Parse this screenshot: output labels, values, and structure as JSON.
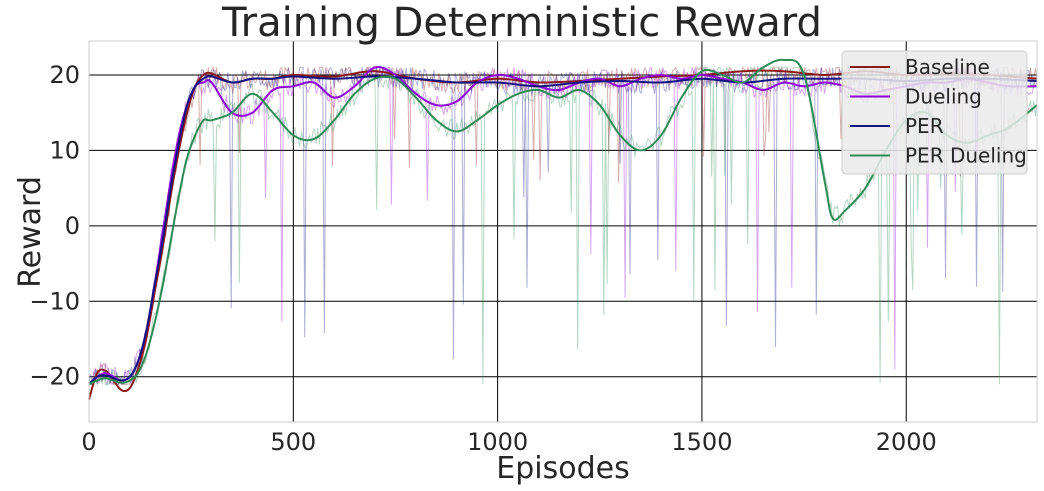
{
  "chart_data": {
    "type": "line",
    "title": "Training Deterministic Reward",
    "xlabel": "Episodes",
    "ylabel": "Reward",
    "xlim": [
      0,
      2320
    ],
    "ylim": [
      -26,
      24.5
    ],
    "xticks": [
      0,
      500,
      1000,
      1500,
      2000
    ],
    "yticks": [
      -20,
      -10,
      0,
      10,
      20
    ],
    "xtick_labels": [
      "0",
      "500",
      "1000",
      "1500",
      "2000"
    ],
    "ytick_labels": [
      "−20",
      "−10",
      "0",
      "10",
      "20"
    ],
    "grid": true,
    "legend_position": "top-right",
    "series": [
      {
        "name": "Baseline",
        "color": "#8b1a1a",
        "x": [
          0,
          20,
          40,
          60,
          80,
          100,
          120,
          140,
          160,
          180,
          200,
          220,
          240,
          260,
          280,
          300,
          350,
          400,
          450,
          500,
          600,
          700,
          800,
          900,
          1000,
          1100,
          1200,
          1300,
          1400,
          1500,
          1600,
          1700,
          1800,
          1900,
          2000,
          2100,
          2200,
          2320
        ],
        "y": [
          -23,
          -19.5,
          -19.2,
          -20.5,
          -21.8,
          -21.5,
          -19,
          -15,
          -9,
          -3,
          4,
          10,
          15,
          18.5,
          20,
          20.2,
          19,
          19.5,
          19.5,
          20,
          19.8,
          20.5,
          19.5,
          19,
          19.5,
          19,
          19.2,
          19.5,
          19.8,
          20,
          20.5,
          20.5,
          20,
          20.5,
          20,
          20.2,
          20,
          19.5
        ]
      },
      {
        "name": "Dueling",
        "color": "#8b00d9",
        "x": [
          0,
          20,
          40,
          60,
          80,
          100,
          120,
          140,
          160,
          180,
          200,
          220,
          240,
          260,
          280,
          300,
          350,
          400,
          450,
          500,
          550,
          600,
          650,
          700,
          750,
          800,
          850,
          900,
          950,
          1000,
          1050,
          1100,
          1150,
          1200,
          1250,
          1300,
          1350,
          1400,
          1450,
          1500,
          1550,
          1600,
          1650,
          1700,
          1750,
          1800,
          1850,
          1900,
          1950,
          2000,
          2050,
          2100,
          2150,
          2200,
          2250,
          2320
        ],
        "y": [
          -21,
          -20,
          -19.5,
          -20,
          -20.5,
          -20,
          -18,
          -14,
          -8,
          -1,
          6,
          12,
          16,
          18.5,
          19,
          19,
          15,
          15,
          18,
          18.5,
          19,
          17,
          18.5,
          21,
          20,
          17.5,
          16,
          16.5,
          19,
          20,
          19.5,
          18.5,
          18,
          19,
          19.5,
          18.5,
          19.5,
          20,
          19.5,
          20,
          19.5,
          19,
          18,
          19,
          18.5,
          19,
          18.5,
          17.5,
          18,
          18.5,
          19,
          19,
          19.5,
          19,
          18.5,
          18.5
        ]
      },
      {
        "name": "PER",
        "color": "#141480",
        "x": [
          0,
          20,
          40,
          60,
          80,
          100,
          120,
          140,
          160,
          180,
          200,
          220,
          240,
          260,
          280,
          300,
          350,
          400,
          450,
          500,
          600,
          700,
          800,
          900,
          1000,
          1100,
          1200,
          1300,
          1400,
          1500,
          1600,
          1700,
          1800,
          1900,
          2000,
          2100,
          2200,
          2320
        ],
        "y": [
          -21,
          -20,
          -19.8,
          -20.2,
          -20.5,
          -20,
          -18,
          -14,
          -8,
          -2,
          5,
          11,
          16,
          18.5,
          19.5,
          19.8,
          19,
          19.5,
          19.5,
          19.8,
          19.5,
          19.8,
          19.5,
          19,
          19,
          18.5,
          19,
          19.2,
          19,
          19.5,
          19,
          19.5,
          19.5,
          19.5,
          19.2,
          19.5,
          19.5,
          19.2
        ]
      },
      {
        "name": "PER Dueling",
        "color": "#2e8b57",
        "x": [
          0,
          20,
          40,
          60,
          80,
          100,
          120,
          140,
          160,
          180,
          200,
          220,
          240,
          260,
          280,
          300,
          350,
          400,
          450,
          500,
          550,
          600,
          650,
          700,
          750,
          800,
          850,
          900,
          950,
          1000,
          1050,
          1100,
          1150,
          1200,
          1250,
          1300,
          1350,
          1400,
          1450,
          1500,
          1550,
          1600,
          1650,
          1700,
          1750,
          1800,
          1820,
          1850,
          1900,
          1950,
          2000,
          2050,
          2100,
          2150,
          2200,
          2250,
          2320
        ],
        "y": [
          -21,
          -20.5,
          -20.2,
          -20.5,
          -20.8,
          -20.5,
          -19.5,
          -17,
          -13,
          -8,
          -2,
          4,
          9,
          12,
          14,
          14,
          15,
          17.5,
          15,
          12,
          11.5,
          14,
          17.5,
          19.5,
          19.5,
          17,
          14,
          12.5,
          14,
          16,
          17.5,
          18,
          17,
          18,
          16,
          12,
          10,
          12,
          17,
          20.5,
          20,
          19,
          21,
          22,
          20,
          6,
          1,
          2,
          5,
          10,
          14,
          15,
          12,
          11,
          12,
          13,
          16
        ]
      }
    ]
  }
}
